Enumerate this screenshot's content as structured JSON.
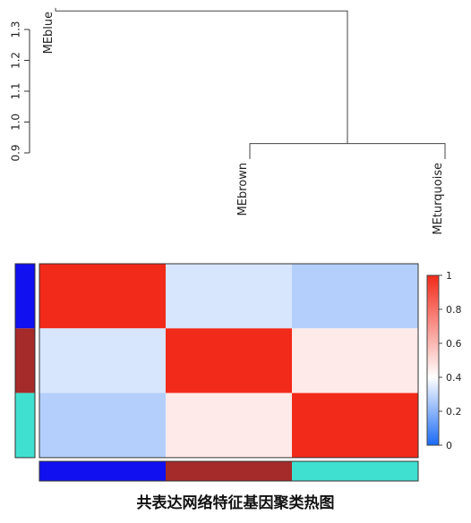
{
  "caption": "共表达网络特征基因聚类热图",
  "chart_data": [
    {
      "type": "dendrogram",
      "leaves": [
        "MEblue",
        "MEbrown",
        "MEturquoise"
      ],
      "merges": [
        {
          "left": "MEbrown",
          "right": "MEturquoise",
          "height": 0.93
        },
        {
          "left": "MEblue",
          "right": "MEbrown+MEturquoise",
          "height": 1.36
        }
      ],
      "leaf_heights": [
        1.37,
        0.88,
        0.88
      ],
      "ylim": [
        0.9,
        1.3
      ],
      "yticks": [
        0.9,
        1.0,
        1.1,
        1.2,
        1.3
      ],
      "ytick_labels": [
        "0.9",
        "1.0",
        "1.1",
        "1.2",
        "1.3"
      ]
    },
    {
      "type": "heatmap",
      "rows": [
        "MEblue",
        "MEbrown",
        "MEturquoise"
      ],
      "columns": [
        "MEblue",
        "MEbrown",
        "MEturquoise"
      ],
      "row_colors": [
        "#1010f0",
        "#a52a2a",
        "#40e0d0"
      ],
      "column_colors": [
        "#1010f0",
        "#a52a2a",
        "#40e0d0"
      ],
      "values": [
        [
          1.0,
          0.33,
          0.27
        ],
        [
          0.33,
          1.0,
          0.46
        ],
        [
          0.27,
          0.46,
          1.0
        ]
      ],
      "colorbar": {
        "range": [
          0,
          1
        ],
        "ticks": [
          0,
          0.2,
          0.4,
          0.6,
          0.8,
          1
        ],
        "tick_labels": [
          "0",
          "0.2",
          "0.4",
          "0.6",
          "0.8",
          "1"
        ],
        "stops": [
          {
            "v": 0.0,
            "color": "#1a6af5"
          },
          {
            "v": 0.4,
            "color": "#ffffff"
          },
          {
            "v": 1.0,
            "color": "#f22a1a"
          }
        ]
      }
    }
  ]
}
